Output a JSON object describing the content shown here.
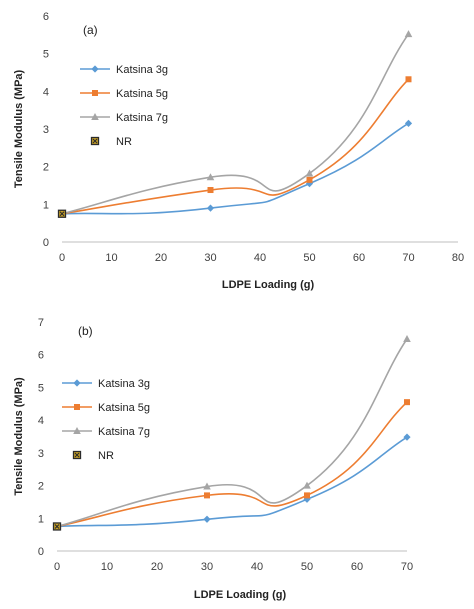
{
  "colors": {
    "k3": "#5B9BD5",
    "k5": "#ED7D31",
    "k7": "#A5A5A5",
    "nr": "#2B2B2B",
    "nr_fill": "#C9A227"
  },
  "chart_data": [
    {
      "type": "line",
      "panel_label": "(a)",
      "xlabel": "LDPE Loading (g)",
      "ylabel": "Tensile Modulus (MPa)",
      "xlim": [
        0,
        80
      ],
      "ylim": [
        0,
        6
      ],
      "xticks": [
        0,
        10,
        20,
        30,
        40,
        50,
        60,
        70,
        80
      ],
      "yticks": [
        0,
        1,
        2,
        3,
        4,
        5,
        6
      ],
      "grid": false,
      "legend_position": "left",
      "smooth": true,
      "series": [
        {
          "name": "Katsina 3g",
          "marker": "diamond",
          "color": "#5B9BD5",
          "x": [
            0,
            30,
            50,
            70
          ],
          "y": [
            0.75,
            0.9,
            1.55,
            3.15
          ]
        },
        {
          "name": "Katsina 5g",
          "marker": "square",
          "color": "#ED7D31",
          "x": [
            0,
            30,
            50,
            70
          ],
          "y": [
            0.75,
            1.38,
            1.65,
            4.32
          ]
        },
        {
          "name": "Katsina 7g",
          "marker": "triangle",
          "color": "#A5A5A5",
          "x": [
            0,
            30,
            50,
            70
          ],
          "y": [
            0.75,
            1.72,
            1.82,
            5.52
          ]
        },
        {
          "name": "NR",
          "marker": "nr",
          "color": "#2B2B2B",
          "x": [
            0
          ],
          "y": [
            0.75
          ]
        }
      ]
    },
    {
      "type": "line",
      "panel_label": "(b)",
      "xlabel": "LDPE Loading (g)",
      "ylabel": "Tensile Modulus (MPa)",
      "xlim": [
        0,
        70
      ],
      "ylim": [
        0,
        7
      ],
      "xticks": [
        0,
        10,
        20,
        30,
        40,
        50,
        60,
        70
      ],
      "yticks": [
        0,
        1,
        2,
        3,
        4,
        5,
        6,
        7
      ],
      "grid": false,
      "legend_position": "left",
      "smooth": true,
      "series": [
        {
          "name": "Katsina 3g",
          "marker": "diamond",
          "color": "#5B9BD5",
          "x": [
            0,
            30,
            50,
            70
          ],
          "y": [
            0.75,
            0.97,
            1.58,
            3.48
          ]
        },
        {
          "name": "Katsina 5g",
          "marker": "square",
          "color": "#ED7D31",
          "x": [
            0,
            30,
            50,
            70
          ],
          "y": [
            0.75,
            1.7,
            1.7,
            4.55
          ]
        },
        {
          "name": "Katsina 7g",
          "marker": "triangle",
          "color": "#A5A5A5",
          "x": [
            0,
            30,
            50,
            70
          ],
          "y": [
            0.75,
            1.97,
            2.0,
            6.48
          ]
        },
        {
          "name": "NR",
          "marker": "nr",
          "color": "#2B2B2B",
          "x": [
            0
          ],
          "y": [
            0.75
          ]
        }
      ]
    }
  ]
}
